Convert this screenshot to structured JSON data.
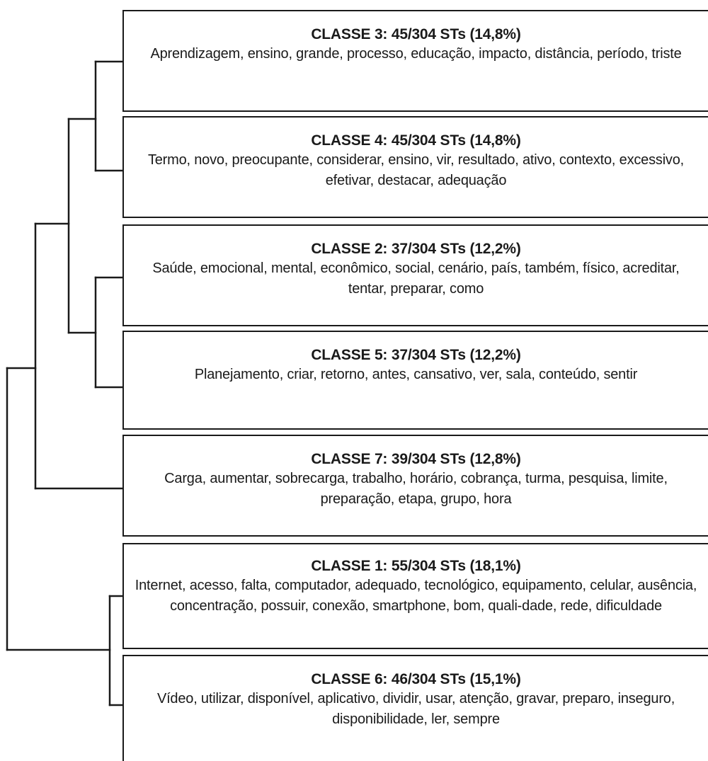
{
  "classes": [
    {
      "id": "c3",
      "title": "CLASSE 3: 45/304 STs (14,8%)",
      "words": "Aprendizagem, ensino, grande, processo, educação, impacto, distância, período, triste"
    },
    {
      "id": "c4",
      "title": "CLASSE 4: 45/304 STs (14,8%)",
      "words": "Termo, novo, preocupante, considerar, ensino, vir, resultado, ativo, contexto, excessivo, efetivar, destacar, adequação"
    },
    {
      "id": "c2",
      "title": "CLASSE 2: 37/304 STs (12,2%)",
      "words": "Saúde, emocional, mental, econômico, social, cenário, país, também, físico, acreditar, tentar, preparar, como"
    },
    {
      "id": "c5",
      "title": "CLASSE 5: 37/304 STs (12,2%)",
      "words": "Planejamento, criar, retorno, antes, cansativo, ver, sala, conteúdo, sentir"
    },
    {
      "id": "c7",
      "title": "CLASSE 7: 39/304 STs (12,8%)",
      "words": "Carga, aumentar, sobrecarga, trabalho, horário, cobrança, turma, pesquisa, limite, preparação, etapa, grupo, hora"
    },
    {
      "id": "c1",
      "title": "CLASSE 1: 55/304 STs (18,1%)",
      "words": "Internet, acesso, falta, computador, adequado, tecnológico, equipamento, celular, ausência, concentração, possuir, conexão, smartphone, bom, quali-dade, rede, dificuldade"
    },
    {
      "id": "c6",
      "title": "CLASSE 6: 46/304 STs (15,1%)",
      "words": "Vídeo, utilizar, disponível, aplicativo, dividir, usar, atenção, gravar, preparo, inseguro, disponibilidade, ler, sempre"
    }
  ]
}
